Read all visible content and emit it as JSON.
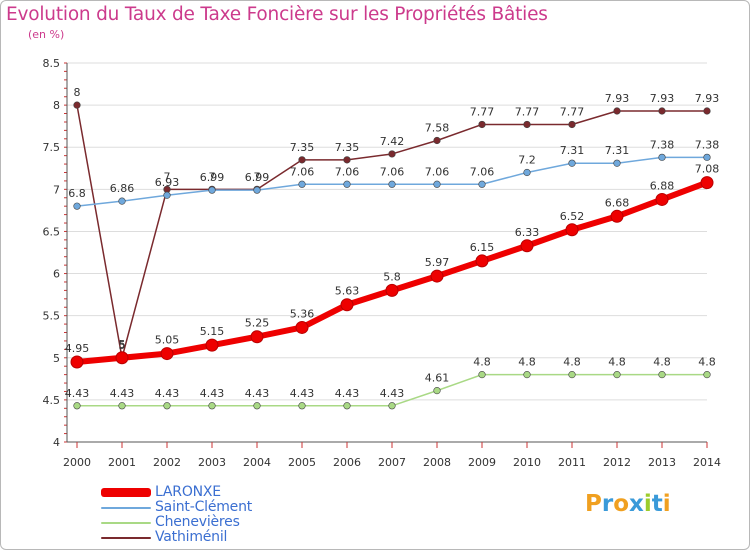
{
  "header": {
    "title": "Evolution du Taux de Taxe Foncière sur les Propriétés Bâties",
    "unit": "(en %)"
  },
  "logo": {
    "letters": [
      "P",
      "r",
      "o",
      "x",
      "i",
      "t",
      "i"
    ],
    "colors": [
      "#f0a020",
      "#3a9ad9",
      "#f0a020",
      "#3a9ad9",
      "#9ccc2c",
      "#3a9ad9",
      "#f0a020"
    ]
  },
  "chart_data": {
    "type": "line",
    "title": "Evolution du Taux de Taxe Foncière sur les Propriétés Bâties",
    "ylabel": "(en %)",
    "xlabel": "",
    "x": [
      "2000",
      "2001",
      "2002",
      "2003",
      "2004",
      "2005",
      "2006",
      "2007",
      "2008",
      "2009",
      "2010",
      "2011",
      "2012",
      "2013",
      "2014"
    ],
    "ylim": [
      4,
      8.5
    ],
    "yticks": [
      "4",
      "4.5",
      "5",
      "5.5",
      "6",
      "6.5",
      "7",
      "7.5",
      "8",
      "8.5"
    ],
    "grid": "y",
    "legend_position": "bottom-left",
    "series": [
      {
        "name": "Vathiménil",
        "color": "#7a2a2e",
        "values": [
          8,
          5,
          7,
          7,
          7,
          7.35,
          7.35,
          7.42,
          7.58,
          7.77,
          7.77,
          7.77,
          7.93,
          7.93,
          7.93
        ],
        "labels": [
          "8",
          "5",
          "7",
          "7",
          "7",
          "7.35",
          "7.35",
          "7.42",
          "7.58",
          "7.77",
          "7.77",
          "7.77",
          "7.93",
          "7.93",
          "7.93"
        ]
      },
      {
        "name": "Saint-Clément",
        "color": "#6fa8dc",
        "values": [
          6.8,
          6.86,
          6.93,
          6.99,
          6.99,
          7.06,
          7.06,
          7.06,
          7.06,
          7.06,
          7.2,
          7.31,
          7.31,
          7.38,
          7.38
        ],
        "labels": [
          "6.8",
          "6.86",
          "6.93",
          "6.99",
          "6.99",
          "7.06",
          "7.06",
          "7.06",
          "7.06",
          "7.06",
          "7.2",
          "7.31",
          "7.31",
          "7.38",
          "7.38"
        ]
      },
      {
        "name": "Chenevières",
        "color": "#a9d985",
        "values": [
          4.43,
          4.43,
          4.43,
          4.43,
          4.43,
          4.43,
          4.43,
          4.43,
          4.61,
          4.8,
          4.8,
          4.8,
          4.8,
          4.8,
          4.8
        ],
        "labels": [
          "4.43",
          "4.43",
          "4.43",
          "4.43",
          "4.43",
          "4.43",
          "4.43",
          "4.43",
          "4.61",
          "4.8",
          "4.8",
          "4.8",
          "4.8",
          "4.8",
          "4.8"
        ]
      },
      {
        "name": "LARONXE",
        "color": "#ee0000",
        "values": [
          4.95,
          5,
          5.05,
          5.15,
          5.25,
          5.36,
          5.63,
          5.8,
          5.97,
          6.15,
          6.33,
          6.52,
          6.68,
          6.88,
          7.08
        ],
        "labels": [
          "4.95",
          "5",
          "5.05",
          "5.15",
          "5.25",
          "5.36",
          "5.63",
          "5.8",
          "5.97",
          "6.15",
          "6.33",
          "6.52",
          "6.68",
          "6.88",
          "7.08"
        ]
      }
    ],
    "legend": [
      "LARONXE",
      "Saint-Clément",
      "Chenevières",
      "Vathiménil"
    ]
  }
}
